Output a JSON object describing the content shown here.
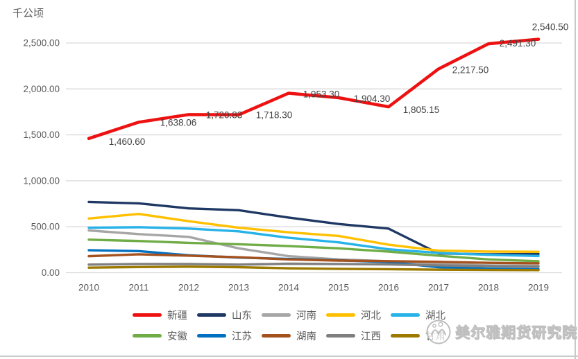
{
  "chart": {
    "unit_label": "千公顷",
    "y_ticks": [
      "0.00",
      "500.00",
      "1,000.00",
      "1,500.00",
      "2,000.00",
      "2,500.00"
    ],
    "x_categories": [
      "2010",
      "2011",
      "2012",
      "2013",
      "2014",
      "2015",
      "2016",
      "2017",
      "2018",
      "2019"
    ]
  },
  "chart_data": {
    "type": "line",
    "title": "",
    "ylabel": "千公顷",
    "x": [
      2010,
      2011,
      2012,
      2013,
      2014,
      2015,
      2016,
      2017,
      2018,
      2019
    ],
    "ylim": [
      0,
      2500
    ],
    "y_tick_step": 500,
    "grid": true,
    "legend_position": "bottom",
    "series": [
      {
        "id": "xinjiang",
        "name": "新疆",
        "color": "#ee1111",
        "values": [
          1460.6,
          1638.06,
          1720.83,
          1718.3,
          1953.3,
          1904.3,
          1805.15,
          2217.5,
          2491.3,
          2540.5
        ],
        "labels": [
          "1,460.60",
          "1,638.06",
          "1,720.83",
          "1,718.30",
          "1,953.30",
          "1,904.30",
          "1,805.15",
          "2,217.50",
          "2,491.30",
          "2,540.50"
        ]
      },
      {
        "id": "shandong",
        "name": "山东",
        "color": "#1f3864",
        "values": [
          770,
          755,
          700,
          680,
          600,
          530,
          480,
          210,
          200,
          205
        ]
      },
      {
        "id": "henan",
        "name": "河南",
        "color": "#a6a6a6",
        "values": [
          460,
          420,
          390,
          265,
          180,
          145,
          125,
          95,
          80,
          75
        ]
      },
      {
        "id": "hebei",
        "name": "河北",
        "color": "#ffc000",
        "values": [
          590,
          640,
          560,
          490,
          440,
          400,
          305,
          240,
          230,
          228
        ]
      },
      {
        "id": "hubei",
        "name": "湖北",
        "color": "#27b2e8",
        "values": [
          490,
          495,
          480,
          450,
          380,
          330,
          255,
          215,
          195,
          182
        ]
      },
      {
        "id": "anhui",
        "name": "安徽",
        "color": "#70ad47",
        "values": [
          360,
          345,
          325,
          310,
          290,
          265,
          230,
          185,
          145,
          125
        ]
      },
      {
        "id": "jiangsu",
        "name": "江苏",
        "color": "#0070c0",
        "values": [
          245,
          235,
          190,
          165,
          150,
          135,
          115,
          60,
          45,
          38
        ]
      },
      {
        "id": "hunan",
        "name": "湖南",
        "color": "#a5511d",
        "values": [
          180,
          200,
          185,
          168,
          145,
          132,
          126,
          118,
          108,
          102
        ]
      },
      {
        "id": "jiangxi",
        "name": "江西",
        "color": "#7f7f7f",
        "values": [
          88,
          95,
          95,
          88,
          98,
          95,
          90,
          80,
          72,
          65
        ]
      },
      {
        "id": "gansu",
        "name": "甘肃",
        "color": "#9c7a00",
        "values": [
          55,
          62,
          66,
          60,
          48,
          42,
          38,
          33,
          30,
          28
        ]
      }
    ]
  },
  "legend": {
    "rows": [
      [
        "xinjiang",
        "shandong",
        "henan",
        "hebei",
        "hubei"
      ],
      [
        "anhui",
        "jiangsu",
        "hunan",
        "jiangxi",
        "gansu"
      ]
    ]
  },
  "watermark": {
    "text": "美尔雅期货研究院"
  }
}
